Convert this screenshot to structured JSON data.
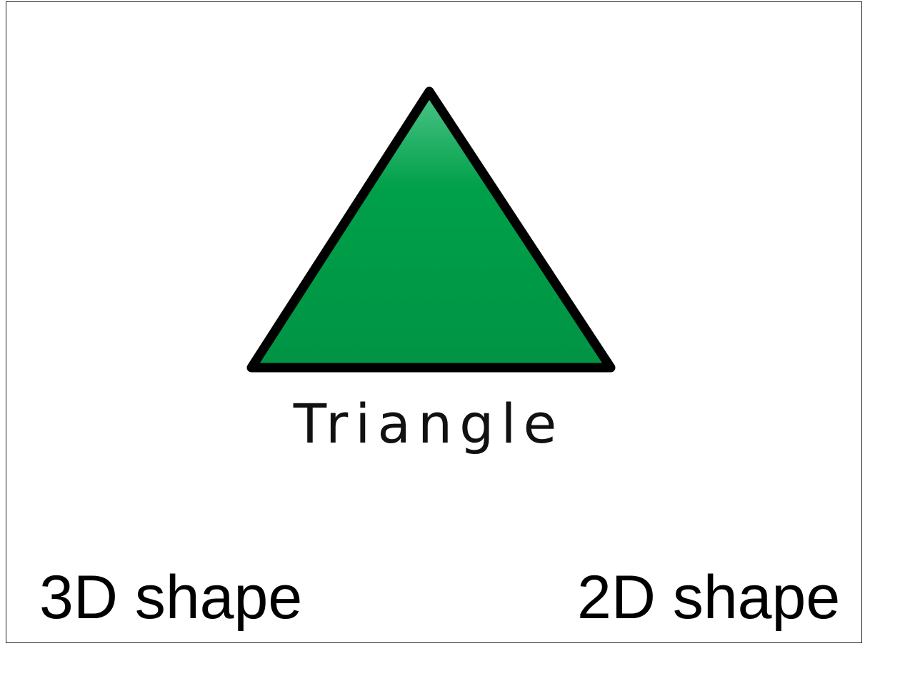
{
  "card": {
    "shape_label": "Triangle",
    "shape_fill": "#00a04a",
    "shape_fill_light": "#4cc487",
    "shape_fill_dark": "#009444",
    "shape_outline": "#000000",
    "shape_icon": "triangle-icon"
  },
  "options": {
    "left_label": "3D shape",
    "right_label": "2D shape"
  }
}
